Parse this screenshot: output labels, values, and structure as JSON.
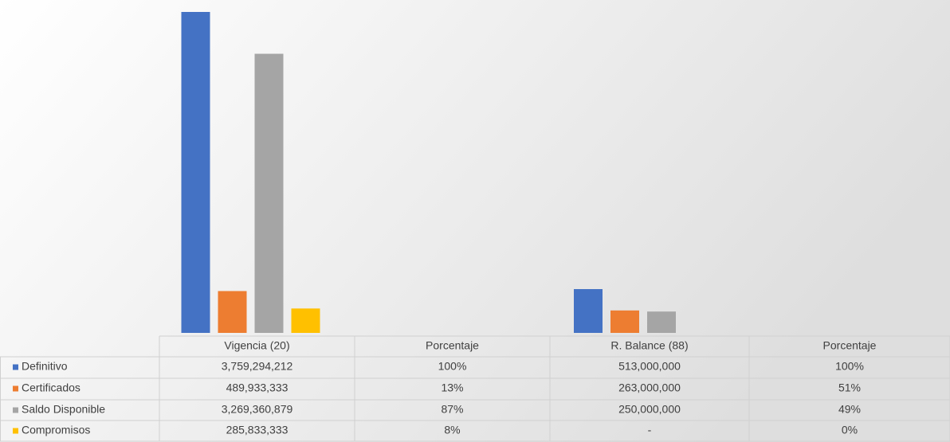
{
  "chart_data": {
    "type": "bar",
    "categories": [
      "Vigencia (20)",
      "Porcentaje",
      "R. Balance (88)",
      "Porcentaje"
    ],
    "series": [
      {
        "name": "Definitivo",
        "color": "#4472c4",
        "values": [
          3759294212,
          100,
          513000000,
          100
        ],
        "value_labels": [
          "3,759,294,212",
          "100%",
          "513,000,000",
          "100%"
        ]
      },
      {
        "name": "Certificados",
        "color": "#ed7d31",
        "values": [
          489933333,
          13,
          263000000,
          51
        ],
        "value_labels": [
          "489,933,333",
          "13%",
          "263,000,000",
          "51%"
        ]
      },
      {
        "name": "Saldo Disponible",
        "color": "#a5a5a5",
        "values": [
          3269360879,
          87,
          250000000,
          49
        ],
        "value_labels": [
          "3,269,360,879",
          "87%",
          "250,000,000",
          "49%"
        ]
      },
      {
        "name": "Compromisos",
        "color": "#ffc000",
        "values": [
          285833333,
          8,
          0,
          0
        ],
        "value_labels": [
          "285,833,333",
          "8%",
          "-",
          "0%"
        ]
      }
    ]
  }
}
